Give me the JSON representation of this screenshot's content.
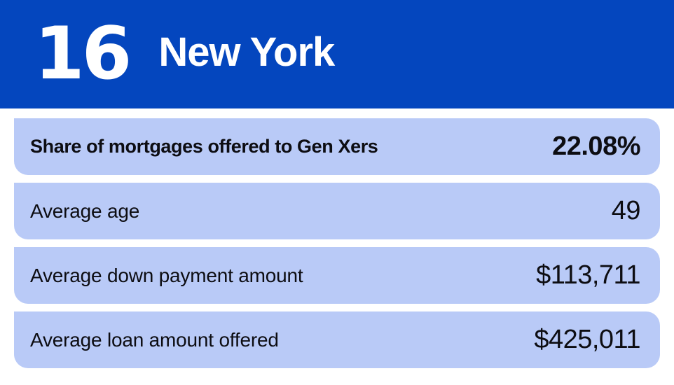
{
  "header": {
    "rank": "16",
    "state": "New York"
  },
  "rows": [
    {
      "label": "Share of mortgages offered to Gen Xers",
      "value": "22.08%"
    },
    {
      "label": "Average age",
      "value": "49"
    },
    {
      "label": "Average down payment amount",
      "value": "$113,711"
    },
    {
      "label": "Average loan amount offered",
      "value": "$425,011"
    }
  ],
  "colors": {
    "header_bg": "#0446BE",
    "row_bg": "#B9CAF7",
    "header_text": "#FFFFFF",
    "text": "#0D0D12"
  },
  "chart_data": {
    "type": "table",
    "title": "16 New York",
    "rank": 16,
    "state": "New York",
    "rows": [
      {
        "label": "Share of mortgages offered to Gen Xers",
        "value": "22.08%",
        "numeric_value": 22.08,
        "unit": "%"
      },
      {
        "label": "Average age",
        "value": "49",
        "numeric_value": 49,
        "unit": "years"
      },
      {
        "label": "Average down payment amount",
        "value": "$113,711",
        "numeric_value": 113711,
        "unit": "USD"
      },
      {
        "label": "Average loan amount offered",
        "value": "$425,011",
        "numeric_value": 425011,
        "unit": "USD"
      }
    ]
  }
}
